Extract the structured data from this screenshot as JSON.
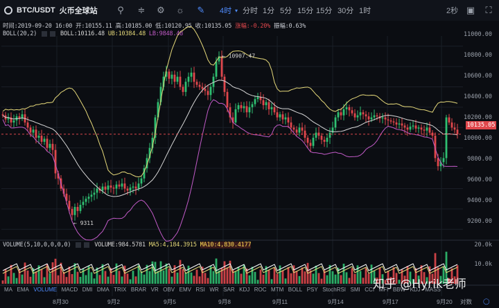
{
  "header": {
    "pair": "BTC/USDT",
    "exchange": "火币全球站",
    "timeframes": [
      "4时",
      "分时",
      "1分",
      "5分",
      "15分",
      "30分",
      "1时"
    ],
    "active_timeframe": "4时",
    "refresh": "2秒"
  },
  "info": {
    "time": "时间:2019-09-20 16:00",
    "open": "开:10155.11",
    "high": "高:10185.00",
    "low": "低:10120.95",
    "close": "收:10135.05",
    "change": "涨幅:-0.20%",
    "amplitude": "振幅:0.63%"
  },
  "boll": {
    "label": "BOLL(20,2)",
    "mid": "BOLL:10116.48",
    "ub": "UB:10384.48",
    "lb": "LB:9848.48"
  },
  "annotations": {
    "high": "10907.47",
    "low": "9311"
  },
  "price_axis": [
    "11000.00",
    "10800.00",
    "10600.00",
    "10400.00",
    "10200.00",
    "10000.00",
    "9800.00",
    "9600.00",
    "9400.00",
    "9200.00"
  ],
  "current_price": "10135.05",
  "volume": {
    "label": "VOLUME(5,10,0,0,0,0)",
    "value": "VOLUME:984.5781",
    "ma5": "MA5:4,184.3915",
    "ma10": "MA10:4,830.4177",
    "axis": [
      "20.0k",
      "10.0k"
    ]
  },
  "indicator_tabs": [
    "MA",
    "EMA",
    "VOLUME",
    "MACD",
    "DMI",
    "DMA",
    "TRIX",
    "BRAR",
    "VR",
    "OBV",
    "EMV",
    "RSI",
    "WR",
    "SAR",
    "KDJ",
    "ROC",
    "MTM",
    "BOLL",
    "PSY",
    "StochRSI",
    "SMI",
    "CCI",
    "MFI",
    "BBW",
    "KDJ",
    "MASS"
  ],
  "active_indicator": "VOLUME",
  "date_axis": [
    "8月30",
    "9月2",
    "9月5",
    "9月8",
    "9月11",
    "9月14",
    "9月17",
    "9月20"
  ],
  "footer": {
    "log": "对数"
  },
  "watermark": "知乎 @Hyrik老师",
  "colors": {
    "up": "#2fbf71",
    "down": "#e0474c",
    "mid": "#d8d8d8",
    "ub": "#e6d97a",
    "lb": "#c25bc8",
    "ma5": "#e6d97a",
    "ma10": "#ffffff"
  },
  "chart_data": {
    "type": "candlestick",
    "y_range": [
      9100,
      11100
    ],
    "closes": [
      10320,
      10280,
      10300,
      10250,
      10270,
      10310,
      10290,
      10330,
      10250,
      10200,
      10150,
      10180,
      10100,
      10120,
      10060,
      10090,
      10000,
      10040,
      9980,
      9750,
      9700,
      9600,
      9550,
      9480,
      9400,
      9340,
      9420,
      9380,
      9440,
      9470,
      9500,
      9520,
      9540,
      9560,
      9600,
      9580,
      9620,
      9590,
      9630,
      9610,
      9600,
      9640,
      9620,
      9650,
      9600,
      9580,
      9610,
      9620,
      9600,
      9650,
      9700,
      9800,
      9900,
      10000,
      10100,
      10300,
      10450,
      10600,
      10700,
      10750,
      10680,
      10720,
      10650,
      10700,
      10600,
      10550,
      10650,
      10700,
      10740,
      10650,
      10620,
      10600,
      10580,
      10560,
      10520,
      10600,
      10700,
      10850,
      10900,
      10700,
      10550,
      10400,
      10300,
      10250,
      10380,
      10420,
      10390,
      10410,
      10350,
      10400,
      10430,
      10480,
      10500,
      10470,
      10420,
      10450,
      10380,
      10400,
      10350,
      10300,
      10330,
      10280,
      10300,
      10250,
      10200,
      10180,
      10150,
      10200,
      10170,
      10100,
      10050,
      10020,
      10100,
      10150,
      10120,
      10080,
      10060,
      10100,
      10150,
      10200,
      10300,
      10350,
      10320,
      10380,
      10400,
      10370,
      10340,
      10300,
      10320,
      10350,
      10330,
      10310,
      10280,
      10300,
      10320,
      10310,
      10290,
      10300,
      10280,
      10270,
      10260,
      10250,
      10230,
      10240,
      10220,
      10200,
      10180,
      10210,
      10220,
      10190,
      10200,
      10180,
      10170,
      10200,
      10150,
      10120,
      9900,
      9820,
      9860,
      9900,
      10300,
      10250,
      10200,
      10180,
      10135
    ],
    "annotations": [
      {
        "label": "10907.47",
        "value": 10907.47
      },
      {
        "label": "9311",
        "value": 9311
      }
    ]
  }
}
